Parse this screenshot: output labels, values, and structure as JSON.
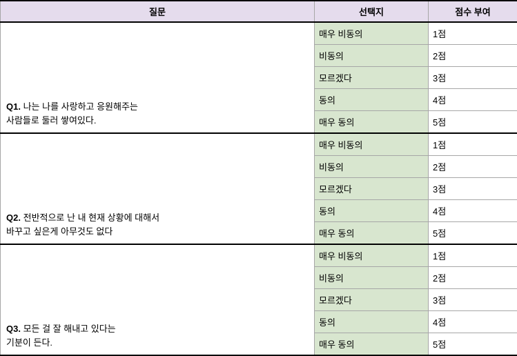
{
  "headers": {
    "question": "질문",
    "choice": "선택지",
    "score": "점수 부여"
  },
  "choices": [
    "매우 비동의",
    "비동의",
    "모르겠다",
    "동의",
    "매우 동의"
  ],
  "scores": [
    "1점",
    "2점",
    "3점",
    "4점",
    "5점"
  ],
  "questions": [
    {
      "prefix": "Q1.",
      "text": "나는 나를 사랑하고 응원해주는\n사람들로 둘러 쌓여있다."
    },
    {
      "prefix": "Q2.",
      "text": "전반적으로 난 내 현재 상황에 대해서\n 바꾸고 싶은게 아무것도 없다"
    },
    {
      "prefix": "Q3.",
      "text": "모든 걸 잘 해내고 있다는\n기분이 든다."
    }
  ],
  "colors": {
    "header_bg": "#e5dced",
    "choice_bg": "#d8e6cf",
    "grid_border": "#a6a6a6",
    "heavy_border": "#000000"
  }
}
